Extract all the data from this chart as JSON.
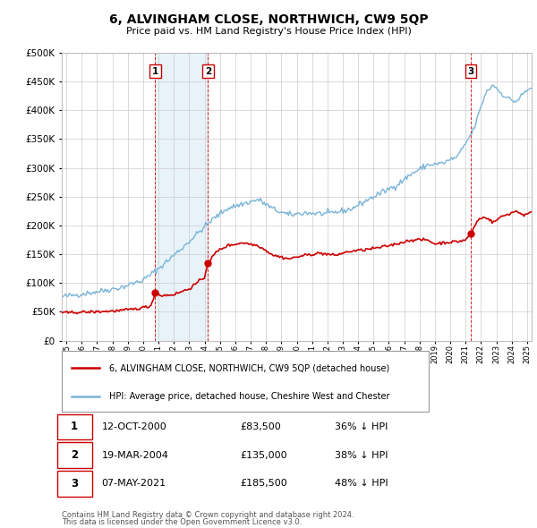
{
  "title": "6, ALVINGHAM CLOSE, NORTHWICH, CW9 5QP",
  "subtitle": "Price paid vs. HM Land Registry's House Price Index (HPI)",
  "ytick_values": [
    0,
    50000,
    100000,
    150000,
    200000,
    250000,
    300000,
    350000,
    400000,
    450000,
    500000
  ],
  "xlim_start": 1994.7,
  "xlim_end": 2025.3,
  "ylim": [
    0,
    500000
  ],
  "hpi_color": "#7ab4d8",
  "hpi_fill_color": "#d6e8f5",
  "price_color": "#cc0000",
  "vline_color": "#cc0000",
  "shade_color": "#daeaf5",
  "transactions": [
    {
      "date_num": 2000.79,
      "price": 83500,
      "label": "1"
    },
    {
      "date_num": 2004.22,
      "price": 135000,
      "label": "2"
    },
    {
      "date_num": 2021.35,
      "price": 185500,
      "label": "3"
    }
  ],
  "table_entries": [
    {
      "num": "1",
      "date": "12-OCT-2000",
      "price": "£83,500",
      "change": "36% ↓ HPI"
    },
    {
      "num": "2",
      "date": "19-MAR-2004",
      "price": "£135,000",
      "change": "38% ↓ HPI"
    },
    {
      "num": "3",
      "date": "07-MAY-2021",
      "price": "£185,500",
      "change": "48% ↓ HPI"
    }
  ],
  "legend_line1": "6, ALVINGHAM CLOSE, NORTHWICH, CW9 5QP (detached house)",
  "legend_line2": "HPI: Average price, detached house, Cheshire West and Chester",
  "footnote1": "Contains HM Land Registry data © Crown copyright and database right 2024.",
  "footnote2": "This data is licensed under the Open Government Licence v3.0.",
  "background_color": "#ffffff",
  "grid_color": "#cccccc"
}
